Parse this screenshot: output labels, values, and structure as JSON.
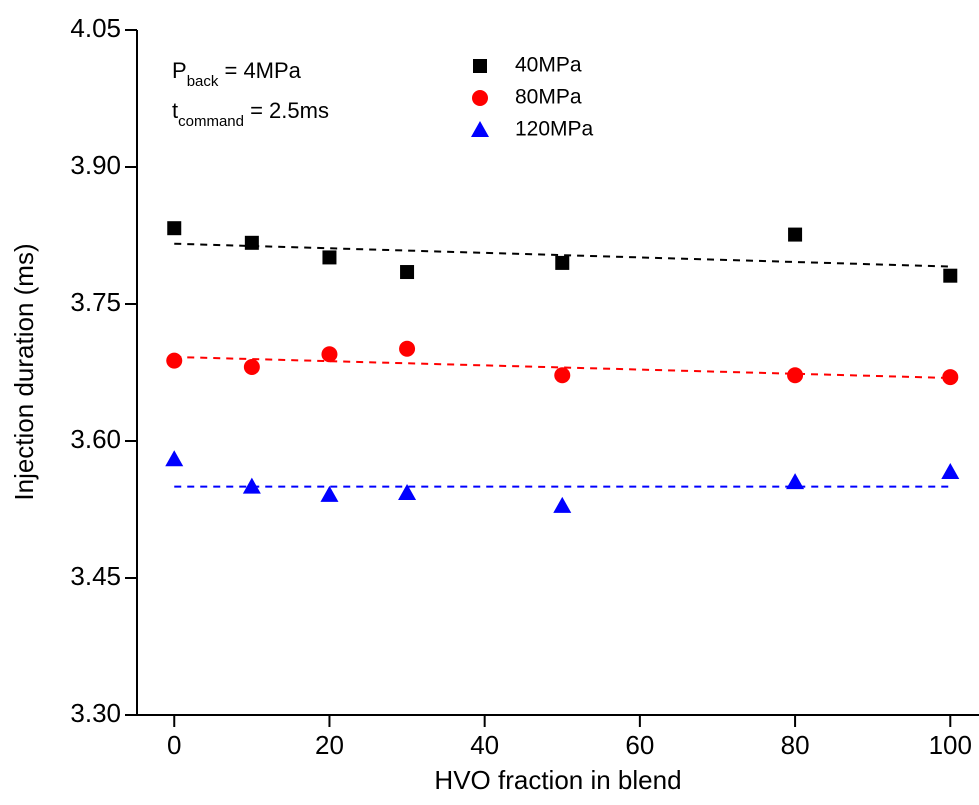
{
  "chart_data": {
    "type": "scatter",
    "xlabel": "HVO fraction in blend",
    "ylabel": "Injection duration (ms)",
    "x": [
      0,
      10,
      20,
      30,
      50,
      80,
      100
    ],
    "xlim": [
      -4.8,
      103.7
    ],
    "ylim": [
      3.3,
      4.05
    ],
    "xticks": [
      0,
      20,
      40,
      60,
      80,
      100
    ],
    "yticks": [
      {
        "value": 3.3,
        "label": "3.30"
      },
      {
        "value": 3.45,
        "label": "3.45"
      },
      {
        "value": 3.6,
        "label": "3.60"
      },
      {
        "value": 3.75,
        "label": "3.75"
      },
      {
        "value": 3.9,
        "label": "3.90"
      },
      {
        "value": 4.05,
        "label": "4.05"
      }
    ],
    "annotations": [
      {
        "main": "P",
        "sub": "back",
        "rest": " = 4MPa"
      },
      {
        "main": "t",
        "sub": "command",
        "rest": " = 2.5ms"
      }
    ],
    "series": [
      {
        "name": "40MPa",
        "color": "#000000",
        "marker": "square",
        "values": [
          3.833,
          3.817,
          3.801,
          3.785,
          3.795,
          3.826,
          3.781
        ],
        "trend": {
          "x": [
            0,
            100
          ],
          "values": [
            3.816,
            3.791
          ]
        }
      },
      {
        "name": "80MPa",
        "color": "#ff0000",
        "marker": "circle",
        "values": [
          3.688,
          3.681,
          3.695,
          3.701,
          3.672,
          3.672,
          3.67
        ],
        "trend": {
          "x": [
            0,
            100
          ],
          "values": [
            3.692,
            3.669
          ]
        }
      },
      {
        "name": "120MPa",
        "color": "#0000ff",
        "marker": "triangle",
        "values": [
          3.58,
          3.55,
          3.541,
          3.543,
          3.529,
          3.555,
          3.566
        ],
        "trend": {
          "x": [
            0,
            100
          ],
          "values": [
            3.55,
            3.55
          ]
        }
      }
    ]
  }
}
